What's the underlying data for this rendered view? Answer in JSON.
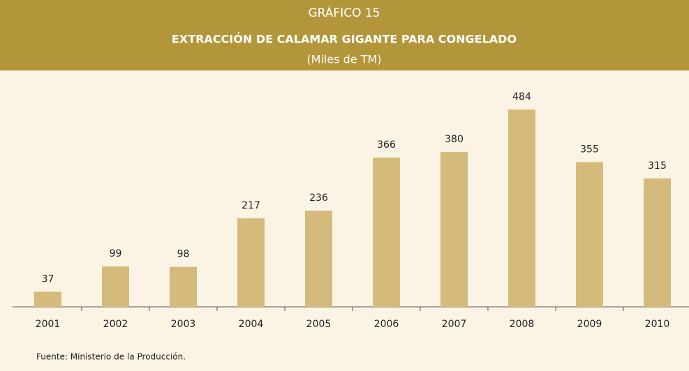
{
  "chart_data": {
    "type": "bar",
    "label": "GRÁFICO 15",
    "title": "EXTRACCIÓN DE CALAMAR GIGANTE PARA CONGELADO",
    "subtitle": "(Miles de TM)",
    "categories": [
      "2001",
      "2002",
      "2003",
      "2004",
      "2005",
      "2006",
      "2007",
      "2008",
      "2009",
      "2010"
    ],
    "values": [
      37,
      99,
      98,
      217,
      236,
      366,
      380,
      484,
      355,
      315
    ],
    "color": "#d4ba7b",
    "source": "Fuente: Ministerio de la Producción."
  }
}
